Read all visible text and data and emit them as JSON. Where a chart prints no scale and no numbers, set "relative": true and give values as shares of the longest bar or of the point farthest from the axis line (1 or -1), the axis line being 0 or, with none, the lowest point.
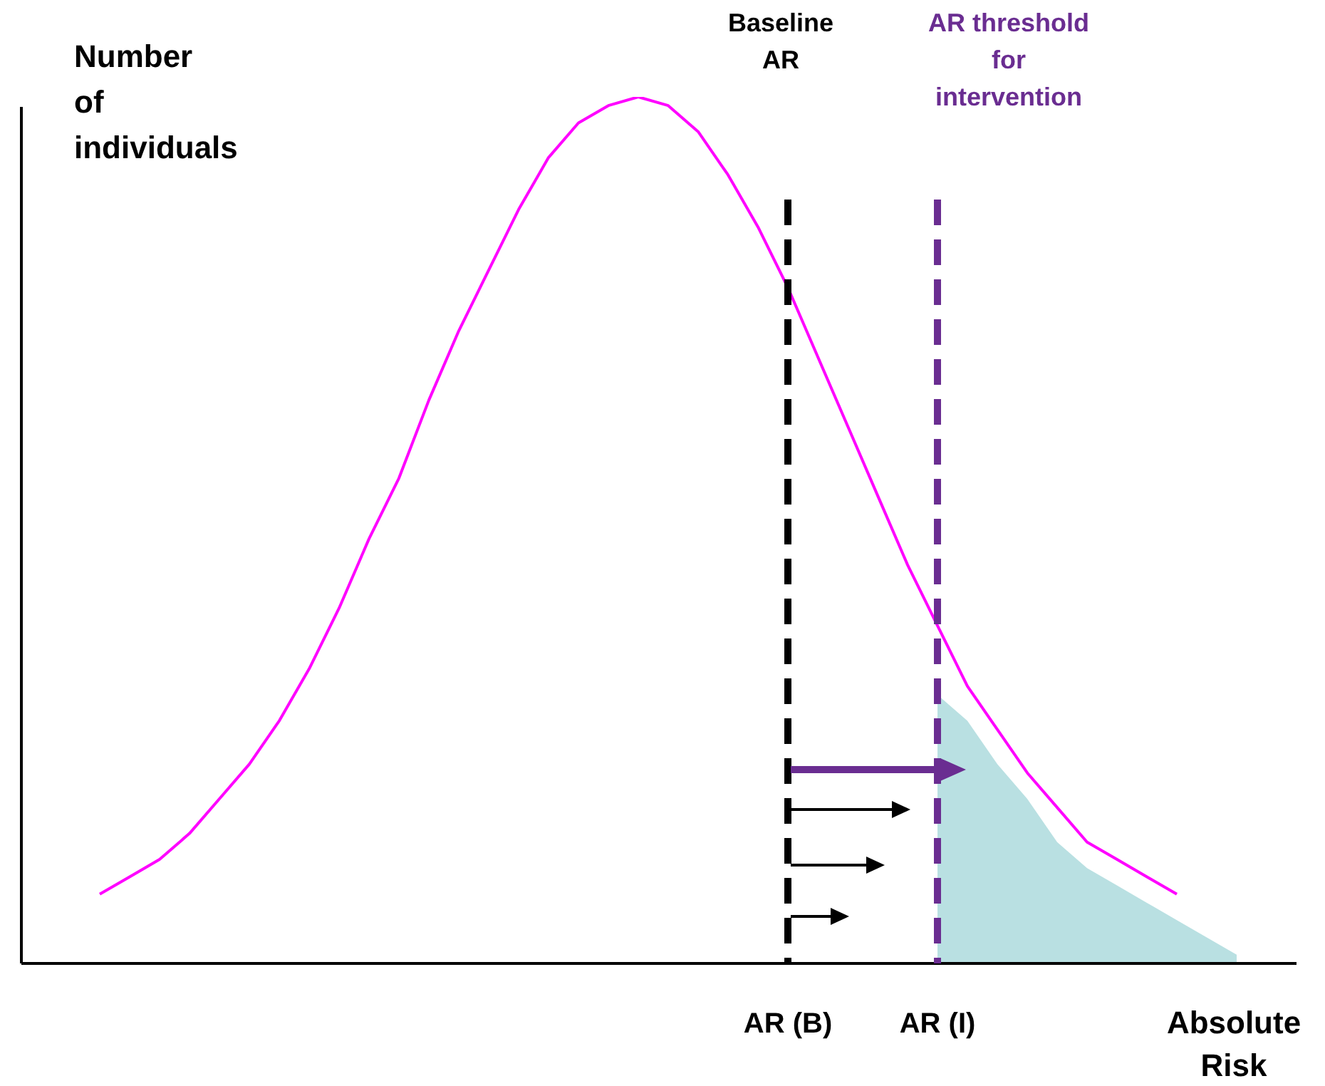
{
  "chart_data": {
    "type": "line",
    "relative": true,
    "ylabel": "Number of individuals",
    "xlabel": "Absolute Risk",
    "categories": [
      null,
      null,
      null,
      null,
      null,
      null,
      null,
      null,
      null,
      null,
      null,
      null,
      null,
      null,
      null,
      null,
      null,
      null,
      null,
      null,
      null,
      null,
      null,
      "AR (B)",
      null,
      null,
      null,
      null,
      "AR (I)",
      null,
      null,
      null,
      null,
      null,
      null,
      null,
      null,
      null,
      null
    ],
    "series": [
      {
        "type": "line",
        "color": "#ff00ff",
        "values": [
          0.08,
          0.1,
          0.12,
          0.15,
          0.19,
          0.23,
          0.28,
          0.34,
          0.41,
          0.49,
          0.56,
          0.65,
          0.73,
          0.8,
          0.87,
          0.93,
          0.97,
          0.99,
          1.0,
          0.99,
          0.96,
          0.91,
          0.85,
          0.78,
          0.7,
          0.62,
          0.54,
          0.46,
          0.39,
          0.32,
          0.27,
          0.22,
          0.18,
          0.14,
          0.12,
          0.1,
          0.08,
          null,
          null
        ]
      },
      {
        "type": "area",
        "color": "#b9e0e2",
        "values": [
          null,
          null,
          null,
          null,
          null,
          null,
          null,
          null,
          null,
          null,
          null,
          null,
          null,
          null,
          null,
          null,
          null,
          null,
          null,
          null,
          null,
          null,
          null,
          null,
          null,
          null,
          null,
          null,
          0.31,
          0.28,
          0.23,
          0.19,
          0.14,
          0.11,
          0.09,
          0.07,
          0.05,
          0.03,
          0.01
        ]
      }
    ],
    "ref_lines": [
      {
        "axis": "x",
        "value": "AR (B)",
        "label": "Baseline AR",
        "color": "#000000",
        "line_style": "dashed"
      },
      {
        "axis": "x",
        "value": "AR (I)",
        "label": "AR threshold for intervention",
        "color": "#6a2d91",
        "line_style": "dashed"
      }
    ],
    "legend": false,
    "marker": "none",
    "grid": false
  }
}
